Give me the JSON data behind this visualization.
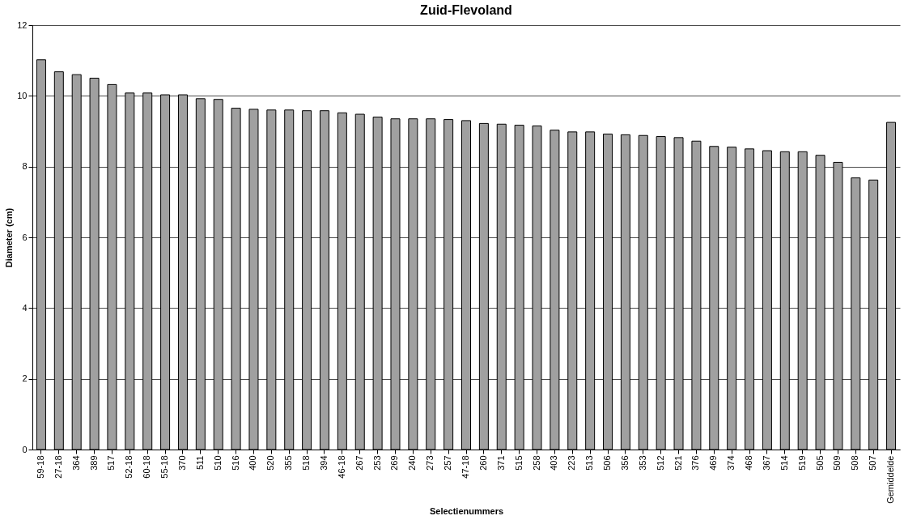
{
  "chart_data": {
    "type": "bar",
    "title": "Zuid-Flevoland",
    "xlabel": "Selectienummers",
    "ylabel": "Diameter (cm)",
    "categories": [
      "59-18",
      "27-18",
      "364",
      "389",
      "517",
      "52-18",
      "60-18",
      "55-18",
      "370",
      "511",
      "510",
      "516",
      "400",
      "520",
      "355",
      "518",
      "394",
      "46-18",
      "267",
      "253",
      "269",
      "240",
      "273",
      "257",
      "47-18",
      "260",
      "371",
      "515",
      "258",
      "403",
      "223",
      "513",
      "506",
      "356",
      "353",
      "512",
      "521",
      "376",
      "469",
      "374",
      "468",
      "367",
      "514",
      "519",
      "505",
      "509",
      "508",
      "507",
      "Gemiddelde"
    ],
    "values": [
      11.02,
      10.68,
      10.6,
      10.5,
      10.32,
      10.08,
      10.08,
      10.03,
      10.03,
      9.92,
      9.9,
      9.65,
      9.62,
      9.6,
      9.6,
      9.58,
      9.58,
      9.52,
      9.48,
      9.4,
      9.35,
      9.35,
      9.35,
      9.33,
      9.3,
      9.22,
      9.2,
      9.17,
      9.15,
      9.03,
      8.98,
      8.98,
      8.92,
      8.9,
      8.88,
      8.85,
      8.82,
      8.72,
      8.57,
      8.55,
      8.5,
      8.45,
      8.42,
      8.42,
      8.32,
      8.12,
      7.68,
      7.62,
      9.25
    ],
    "color": "#a0a0a0",
    "ylim": [
      0,
      12
    ],
    "yticks": [
      0,
      2,
      4,
      6,
      8,
      10,
      12
    ],
    "grid": "y"
  }
}
